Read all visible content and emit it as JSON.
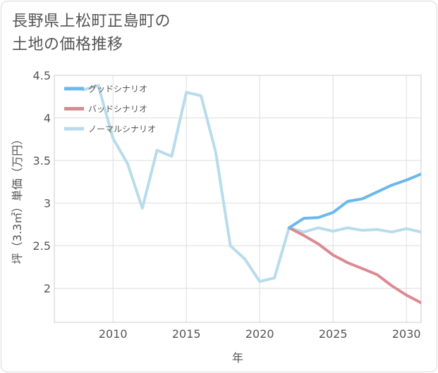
{
  "title_lines": [
    "長野県上松町正島町の",
    "土地の価格推移"
  ],
  "chart_data": {
    "type": "line",
    "xlabel": "年",
    "ylabel": "坪（3.3㎡）単価（万円）",
    "xlim": [
      2006,
      2031
    ],
    "ylim": [
      1.6,
      4.5
    ],
    "xticks": [
      2010,
      2015,
      2020,
      2025,
      2030
    ],
    "yticks": [
      2,
      2.5,
      3,
      3.5,
      4,
      4.5
    ],
    "ytick_labels": [
      "2",
      "2.5",
      "3",
      "3.5",
      "4",
      "4.5"
    ],
    "grid": true,
    "legend_position": "top-left",
    "series": [
      {
        "name": "グッドシナリオ",
        "color": "#6cb8ec",
        "x": [
          2022,
          2023,
          2024,
          2025,
          2026,
          2027,
          2028,
          2029,
          2030,
          2031
        ],
        "y": [
          2.71,
          2.82,
          2.83,
          2.89,
          3.02,
          3.05,
          3.13,
          3.21,
          3.27,
          3.34
        ]
      },
      {
        "name": "バッドシナリオ",
        "color": "#dc8a92",
        "x": [
          2022,
          2023,
          2024,
          2025,
          2026,
          2027,
          2028,
          2029,
          2030,
          2031
        ],
        "y": [
          2.71,
          2.62,
          2.52,
          2.39,
          2.3,
          2.23,
          2.16,
          2.03,
          1.92,
          1.83
        ]
      },
      {
        "name": "ノーマルシナリオ",
        "color": "#b8dceb",
        "x": [
          2008,
          2009,
          2010,
          2011,
          2012,
          2013,
          2014,
          2015,
          2016,
          2017,
          2018,
          2019,
          2020,
          2021,
          2022,
          2023,
          2024,
          2025,
          2026,
          2027,
          2028,
          2029,
          2030,
          2031
        ],
        "y": [
          4.33,
          4.38,
          3.76,
          3.46,
          2.94,
          3.62,
          3.55,
          4.3,
          4.26,
          3.6,
          2.5,
          2.34,
          2.08,
          2.12,
          2.71,
          2.66,
          2.71,
          2.67,
          2.71,
          2.68,
          2.69,
          2.66,
          2.7,
          2.66
        ]
      }
    ]
  }
}
